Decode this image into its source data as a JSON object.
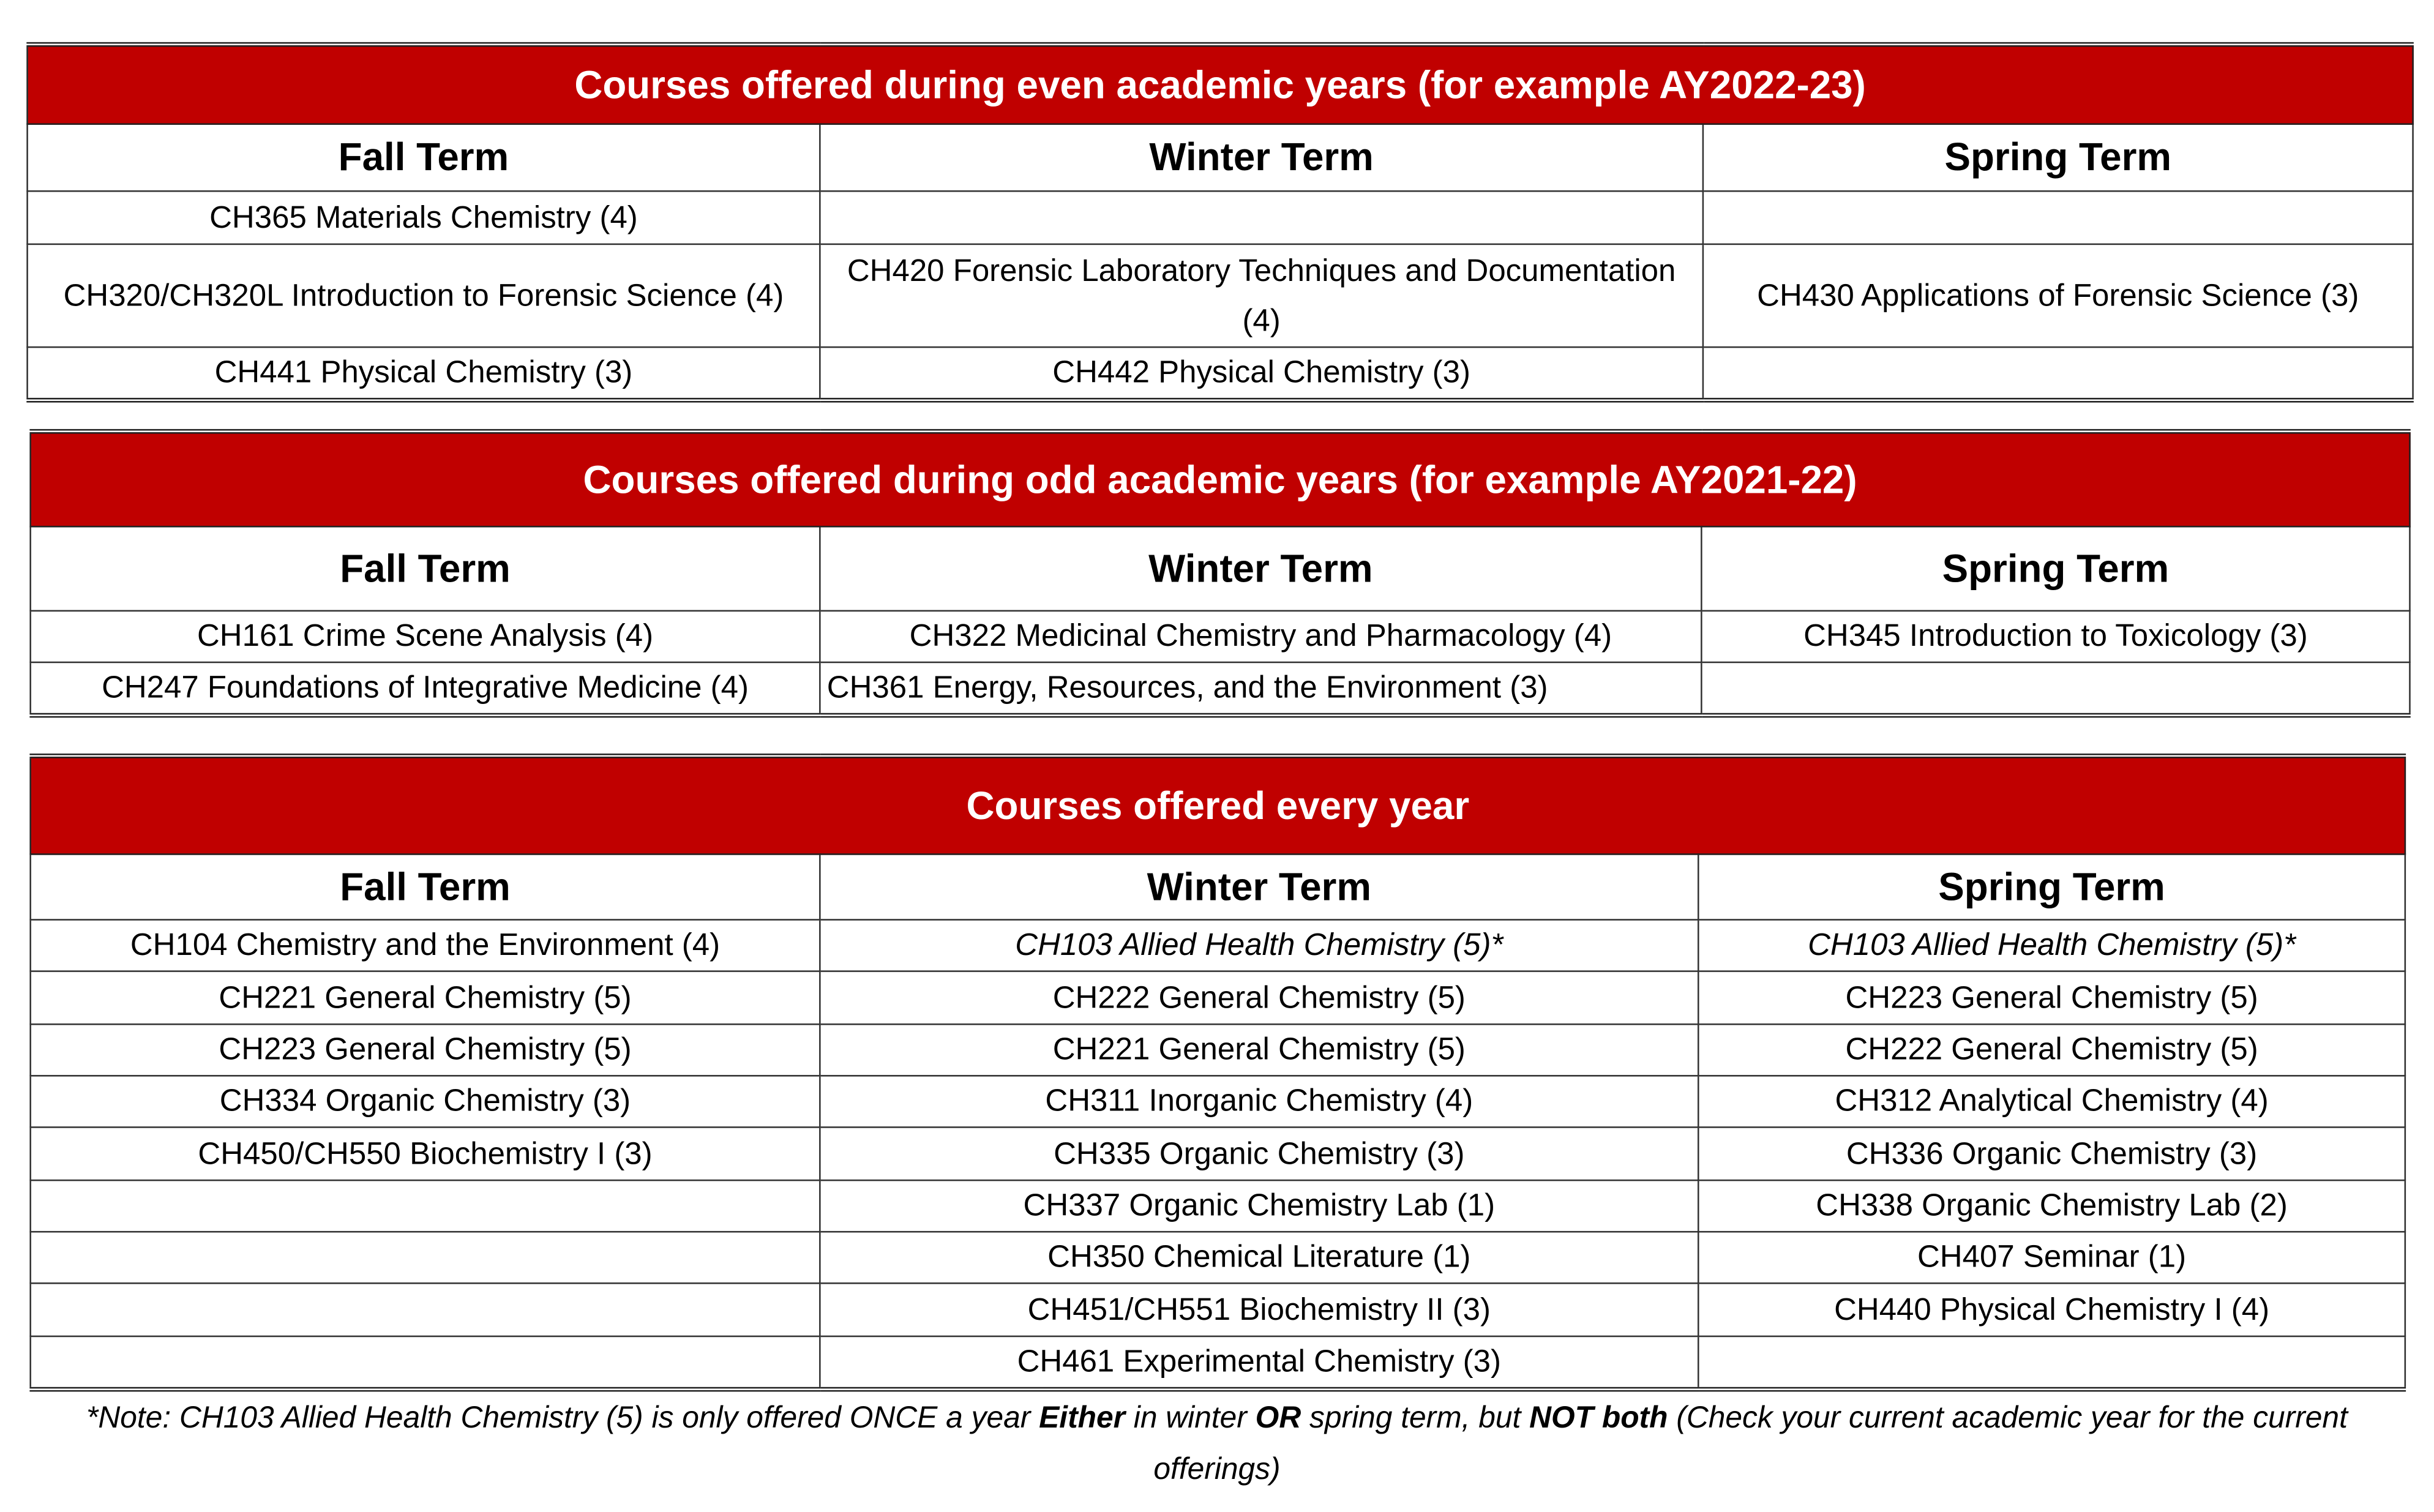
{
  "tables": [
    {
      "title": "Courses offered during even academic years (for example AY2022-23)",
      "headers": [
        "Fall Term",
        "Winter Term",
        "Spring Term"
      ],
      "rows": [
        [
          {
            "text": "CH365 Materials Chemistry (4)"
          },
          {
            "text": ""
          },
          {
            "text": ""
          }
        ],
        [
          {
            "text": "CH320/CH320L Introduction to Forensic Science (4)"
          },
          {
            "text": "CH420 Forensic Laboratory Techniques and Documentation (4)"
          },
          {
            "text": "CH430 Applications of Forensic Science (3)"
          }
        ],
        [
          {
            "text": "CH441 Physical Chemistry (3)"
          },
          {
            "text": "CH442 Physical Chemistry (3)"
          },
          {
            "text": ""
          }
        ]
      ]
    },
    {
      "title": "Courses offered during odd academic years (for example AY2021-22)",
      "headers": [
        "Fall Term",
        "Winter Term",
        "Spring Term"
      ],
      "rows": [
        [
          {
            "text": "CH161 Crime Scene Analysis (4)"
          },
          {
            "text": "CH322 Medicinal Chemistry and Pharmacology (4)"
          },
          {
            "text": "CH345 Introduction to Toxicology (3)"
          }
        ],
        [
          {
            "text": "CH247 Foundations of Integrative Medicine (4)"
          },
          {
            "text": "CH361 Energy, Resources, and the Environment (3)",
            "align": "left"
          },
          {
            "text": ""
          }
        ]
      ]
    },
    {
      "title": "Courses offered every year",
      "headers": [
        "Fall Term",
        "Winter Term",
        "Spring Term"
      ],
      "rows": [
        [
          {
            "text": "CH104 Chemistry and the Environment (4)"
          },
          {
            "text": "CH103 Allied Health Chemistry (5)*",
            "italic": true
          },
          {
            "text": "CH103 Allied Health Chemistry (5)*",
            "italic": true
          }
        ],
        [
          {
            "text": "CH221 General Chemistry (5)"
          },
          {
            "text": "CH222 General Chemistry (5)"
          },
          {
            "text": "CH223 General Chemistry (5)"
          }
        ],
        [
          {
            "text": "CH223 General Chemistry (5)"
          },
          {
            "text": "CH221 General Chemistry (5)"
          },
          {
            "text": "CH222 General Chemistry (5)"
          }
        ],
        [
          {
            "text": "CH334 Organic Chemistry (3)"
          },
          {
            "text": "CH311 Inorganic Chemistry (4)"
          },
          {
            "text": "CH312 Analytical Chemistry (4)"
          }
        ],
        [
          {
            "text": "CH450/CH550 Biochemistry I (3)"
          },
          {
            "text": "CH335 Organic Chemistry (3)"
          },
          {
            "text": "CH336 Organic Chemistry (3)"
          }
        ],
        [
          {
            "text": ""
          },
          {
            "text": "CH337 Organic Chemistry Lab (1)"
          },
          {
            "text": "CH338 Organic Chemistry Lab (2)"
          }
        ],
        [
          {
            "text": ""
          },
          {
            "text": "CH350 Chemical Literature (1)"
          },
          {
            "text": "CH407 Seminar (1)"
          }
        ],
        [
          {
            "text": ""
          },
          {
            "text": "CH451/CH551 Biochemistry II (3)"
          },
          {
            "text": "CH440 Physical Chemistry I (4)"
          }
        ],
        [
          {
            "text": ""
          },
          {
            "text": "CH461 Experimental Chemistry (3)"
          },
          {
            "text": ""
          }
        ]
      ]
    }
  ],
  "note": [
    {
      "text": "*Note: CH103 Allied Health Chemistry (5) is only offered ONCE a year "
    },
    {
      "text": "Either",
      "bold": true
    },
    {
      "text": " in winter "
    },
    {
      "text": "OR",
      "bold": true
    },
    {
      "text": " spring term, but "
    },
    {
      "text": "NOT both",
      "bold": true
    },
    {
      "text": " (Check your current academic year for the current offerings)"
    }
  ],
  "colors": {
    "header_red": "#c00000",
    "header_text": "#ffffff"
  }
}
